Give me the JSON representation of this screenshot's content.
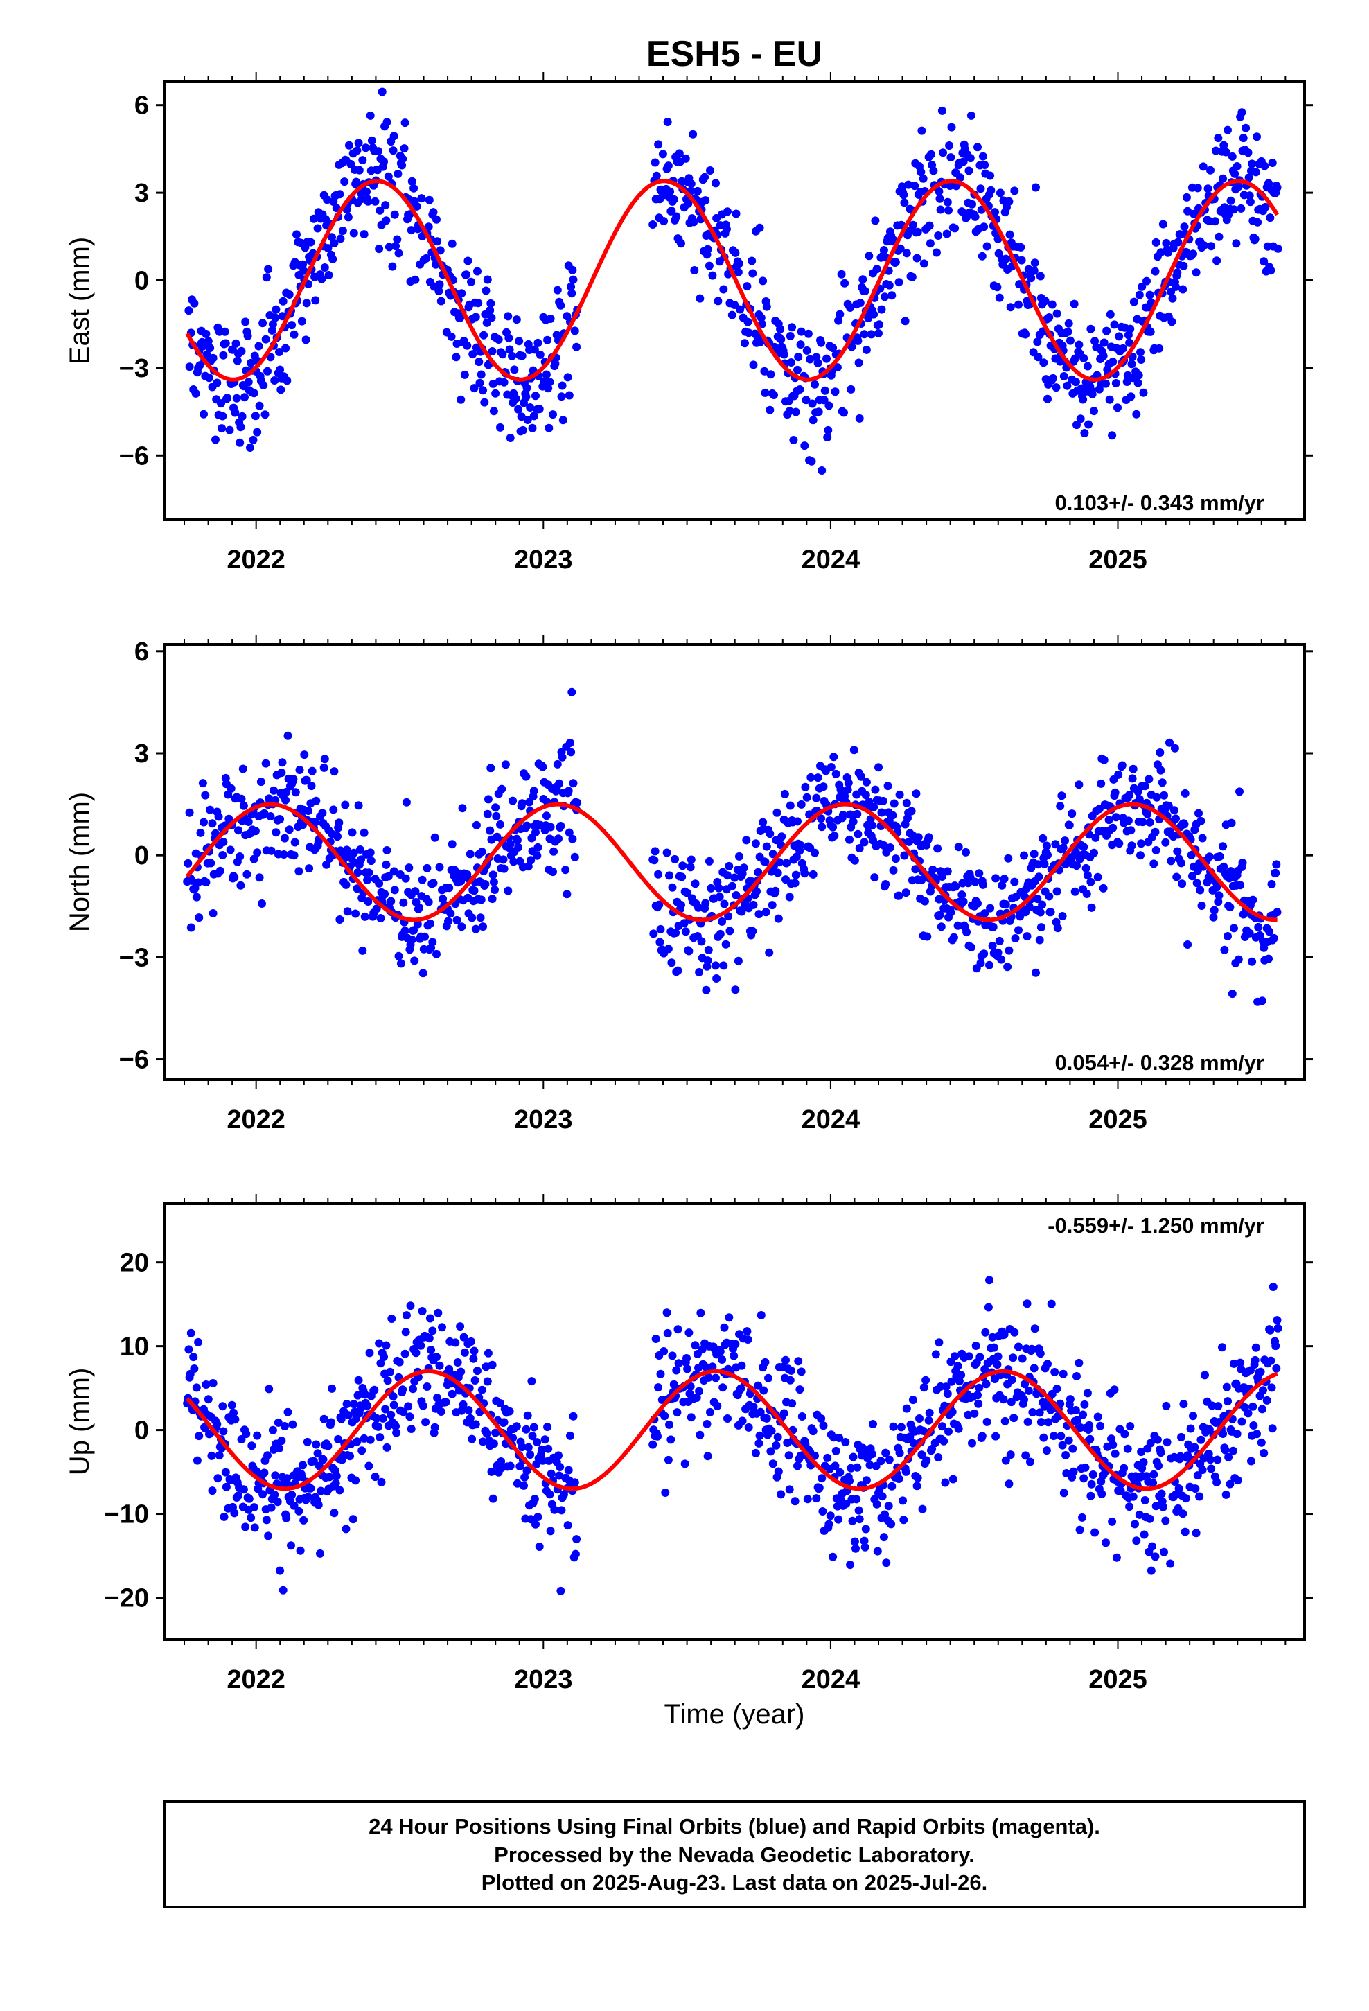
{
  "title": "ESH5 - EU",
  "xlabel": "Time (year)",
  "colors": {
    "points": "#0000ff",
    "fit": "#ff0000",
    "axis": "#000000"
  },
  "footer": [
    "24 Hour Positions Using Final Orbits (blue) and Rapid Orbits (magenta).",
    "Processed by the Nevada Geodetic Laboratory.",
    "Plotted on 2025-Aug-23. Last data on 2025-Jul-26."
  ],
  "chart_data": [
    {
      "type": "scatter",
      "component": "east",
      "ylabel": "East (mm)",
      "rate_text": "0.103+/- 0.343 mm/yr",
      "rate_position": "bottom-right",
      "xlim": [
        2021.68,
        2025.65
      ],
      "ylim": [
        -8.2,
        6.8
      ],
      "yticks": [
        6,
        3,
        0,
        -3,
        -6
      ],
      "ytick_labels": [
        "6",
        "3",
        "0",
        "−3",
        "−6"
      ],
      "xticks": [
        2022,
        2023,
        2024,
        2025
      ],
      "xtick_labels": [
        "2022",
        "2023",
        "2024",
        "2025"
      ],
      "fit": {
        "offset": 0.0,
        "amplitude": 3.4,
        "peak_year": 2022.42,
        "start": 2021.76,
        "end": 2025.56
      },
      "scatter": {
        "noise": 1.1,
        "spikes": 5.0
      },
      "gap": [
        2023.12,
        2023.38
      ]
    },
    {
      "type": "scatter",
      "component": "north",
      "ylabel": "North (mm)",
      "rate_text": "0.054+/- 0.328 mm/yr",
      "rate_position": "bottom-right",
      "xlim": [
        2021.68,
        2025.65
      ],
      "ylim": [
        -6.6,
        6.2
      ],
      "yticks": [
        6,
        3,
        0,
        -3,
        -6
      ],
      "ytick_labels": [
        "6",
        "3",
        "0",
        "−3",
        "−6"
      ],
      "xticks": [
        2022,
        2023,
        2024,
        2025
      ],
      "xtick_labels": [
        "2022",
        "2023",
        "2024",
        "2025"
      ],
      "fit": {
        "offset": -0.2,
        "amplitude": 1.7,
        "peak_year": 2022.05,
        "start": 2021.76,
        "end": 2025.56
      },
      "scatter": {
        "noise": 0.9,
        "spikes": 4.0
      },
      "gap": [
        2023.12,
        2023.38
      ]
    },
    {
      "type": "scatter",
      "component": "up",
      "ylabel": "Up (mm)",
      "rate_text": "-0.559+/- 1.250 mm/yr",
      "rate_position": "top-right",
      "xlim": [
        2021.68,
        2025.65
      ],
      "ylim": [
        -25,
        27
      ],
      "yticks": [
        20,
        10,
        0,
        -10,
        -20
      ],
      "ytick_labels": [
        "20",
        "10",
        "0",
        "−10",
        "−20"
      ],
      "xticks": [
        2022,
        2023,
        2024,
        2025
      ],
      "xtick_labels": [
        "2022",
        "2023",
        "2024",
        "2025"
      ],
      "fit": {
        "offset": 0.0,
        "amplitude": 7.0,
        "peak_year": 2022.6,
        "start": 2021.76,
        "end": 2025.56
      },
      "scatter": {
        "noise": 4.0,
        "spikes": 20.0
      },
      "gap": [
        2023.12,
        2023.38
      ]
    }
  ]
}
